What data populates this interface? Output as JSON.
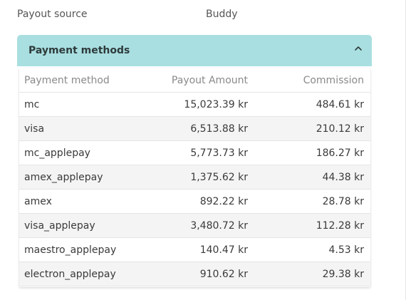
{
  "payout_source": {
    "label": "Payout source",
    "value": "Buddy"
  },
  "panel": {
    "title": "Payment methods",
    "toggle_icon": "chevron-up-icon"
  },
  "table": {
    "columns": [
      "Payment method",
      "Payout Amount",
      "Commission"
    ],
    "rows": [
      {
        "method": "mc",
        "amount": "15,023.39 kr",
        "commission": "484.61 kr"
      },
      {
        "method": "visa",
        "amount": "6,513.88 kr",
        "commission": "210.12 kr"
      },
      {
        "method": "mc_applepay",
        "amount": "5,773.73 kr",
        "commission": "186.27 kr"
      },
      {
        "method": "amex_applepay",
        "amount": "1,375.62 kr",
        "commission": "44.38 kr"
      },
      {
        "method": "amex",
        "amount": "892.22 kr",
        "commission": "28.78 kr"
      },
      {
        "method": "visa_applepay",
        "amount": "3,480.72 kr",
        "commission": "112.28 kr"
      },
      {
        "method": "maestro_applepay",
        "amount": "140.47 kr",
        "commission": "4.53 kr"
      },
      {
        "method": "electron_applepay",
        "amount": "910.62 kr",
        "commission": "29.38 kr"
      }
    ]
  }
}
